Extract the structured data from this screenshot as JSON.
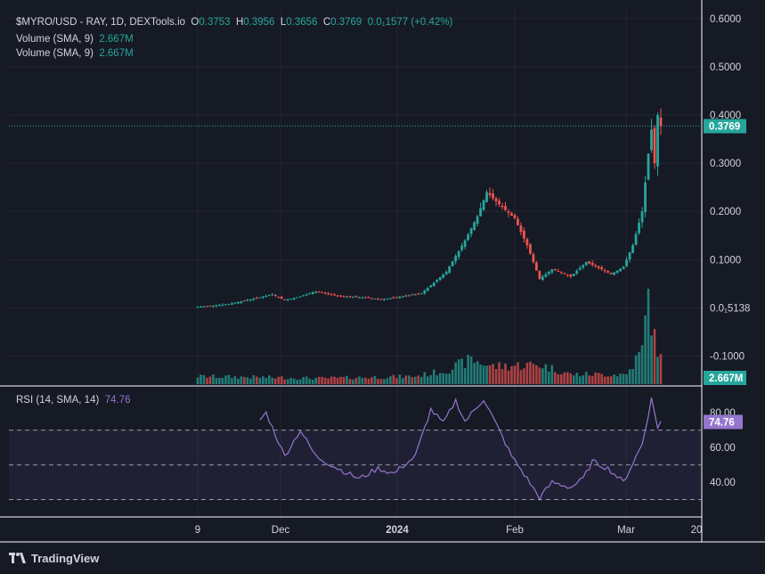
{
  "header": {
    "symbol": "$MYRO/USD - RAY, 1D, DEXTools.io",
    "ohlc": {
      "o_label": "O",
      "o": "0.3753",
      "h_label": "H",
      "h": "0.3956",
      "l_label": "L",
      "l": "0.3656",
      "c_label": "C",
      "c": "0.3769",
      "change": "0.0₁1577 (+0.42%)"
    },
    "volume_lines": [
      {
        "label": "Volume (SMA, 9)",
        "value": "2.667M"
      },
      {
        "label": "Volume (SMA, 9)",
        "value": "2.667M"
      }
    ]
  },
  "rsi_legend": {
    "label": "RSI (14, SMA, 14)",
    "value": "74.76"
  },
  "brand": {
    "name": "TradingView"
  },
  "colors": {
    "up": "#26a69a",
    "down": "#ef5350",
    "rsi": "#9575cd",
    "bg": "#161a25",
    "grid": "#242733",
    "rsi_band": "rgba(126,87,194,0.10)"
  },
  "chart_data": [
    {
      "type": "candlestick",
      "x": {
        "ticks": [
          "9",
          "Dec",
          "2024",
          "Feb",
          "Mar",
          "20"
        ]
      },
      "y_ticks": [
        "0.6000",
        "0.5000",
        "0.4000",
        "0.3000",
        "0.2000",
        "0.1000",
        "0.0₁5138",
        "-0.1000"
      ],
      "ylim": [
        -0.16,
        0.62
      ],
      "current_price": {
        "value": 0.3769,
        "label": "0.3769"
      },
      "knots": [
        {
          "i": 0,
          "v": 0.002
        },
        {
          "i": 10,
          "v": 0.008
        },
        {
          "i": 20,
          "v": 0.022
        },
        {
          "i": 24,
          "v": 0.028
        },
        {
          "i": 28,
          "v": 0.016
        },
        {
          "i": 32,
          "v": 0.022
        },
        {
          "i": 38,
          "v": 0.034
        },
        {
          "i": 45,
          "v": 0.025
        },
        {
          "i": 60,
          "v": 0.018
        },
        {
          "i": 72,
          "v": 0.03
        },
        {
          "i": 80,
          "v": 0.075
        },
        {
          "i": 86,
          "v": 0.14
        },
        {
          "i": 90,
          "v": 0.19
        },
        {
          "i": 93,
          "v": 0.24
        },
        {
          "i": 97,
          "v": 0.215
        },
        {
          "i": 102,
          "v": 0.185
        },
        {
          "i": 106,
          "v": 0.13
        },
        {
          "i": 110,
          "v": 0.06
        },
        {
          "i": 114,
          "v": 0.08
        },
        {
          "i": 120,
          "v": 0.065
        },
        {
          "i": 125,
          "v": 0.095
        },
        {
          "i": 130,
          "v": 0.08
        },
        {
          "i": 133,
          "v": 0.07
        },
        {
          "i": 137,
          "v": 0.085
        },
        {
          "i": 140,
          "v": 0.13
        },
        {
          "i": 143,
          "v": 0.2
        },
        {
          "i": 145,
          "v": 0.32
        },
        {
          "i": 146,
          "v": 0.37
        },
        {
          "i": 147,
          "v": 0.3
        },
        {
          "i": 148,
          "v": 0.4
        },
        {
          "i": 149,
          "v": 0.3769
        }
      ],
      "candle_count": 150
    },
    {
      "type": "bar",
      "name": "Volume",
      "last_value_label": "2.667M",
      "knots": [
        {
          "i": 0,
          "v": 0.8
        },
        {
          "i": 40,
          "v": 0.6
        },
        {
          "i": 70,
          "v": 0.8
        },
        {
          "i": 80,
          "v": 1.4
        },
        {
          "i": 88,
          "v": 2.5
        },
        {
          "i": 95,
          "v": 1.8
        },
        {
          "i": 110,
          "v": 2.0
        },
        {
          "i": 120,
          "v": 1.0
        },
        {
          "i": 138,
          "v": 1.0
        },
        {
          "i": 143,
          "v": 3.5
        },
        {
          "i": 145,
          "v": 9.0
        },
        {
          "i": 147,
          "v": 4.5
        },
        {
          "i": 149,
          "v": 2.6
        }
      ],
      "ylim": [
        0,
        10
      ]
    },
    {
      "type": "line",
      "name": "RSI",
      "y_ticks": [
        "80.00",
        "60.00",
        "40.00"
      ],
      "levels": [
        70,
        50,
        30
      ],
      "ylim": [
        20,
        95
      ],
      "current": {
        "value": 74.76,
        "label": "74.76"
      },
      "knots": [
        {
          "i": 20,
          "v": 76
        },
        {
          "i": 22,
          "v": 80
        },
        {
          "i": 28,
          "v": 55
        },
        {
          "i": 33,
          "v": 70
        },
        {
          "i": 38,
          "v": 55
        },
        {
          "i": 45,
          "v": 48
        },
        {
          "i": 52,
          "v": 42
        },
        {
          "i": 58,
          "v": 48
        },
        {
          "i": 63,
          "v": 45
        },
        {
          "i": 70,
          "v": 55
        },
        {
          "i": 75,
          "v": 82
        },
        {
          "i": 79,
          "v": 74
        },
        {
          "i": 83,
          "v": 87
        },
        {
          "i": 86,
          "v": 75
        },
        {
          "i": 92,
          "v": 88
        },
        {
          "i": 97,
          "v": 70
        },
        {
          "i": 101,
          "v": 55
        },
        {
          "i": 106,
          "v": 42
        },
        {
          "i": 110,
          "v": 31
        },
        {
          "i": 114,
          "v": 40
        },
        {
          "i": 120,
          "v": 37
        },
        {
          "i": 124,
          "v": 42
        },
        {
          "i": 127,
          "v": 52
        },
        {
          "i": 132,
          "v": 48
        },
        {
          "i": 137,
          "v": 40
        },
        {
          "i": 143,
          "v": 62
        },
        {
          "i": 146,
          "v": 88
        },
        {
          "i": 148,
          "v": 72
        },
        {
          "i": 149,
          "v": 75
        }
      ]
    }
  ]
}
